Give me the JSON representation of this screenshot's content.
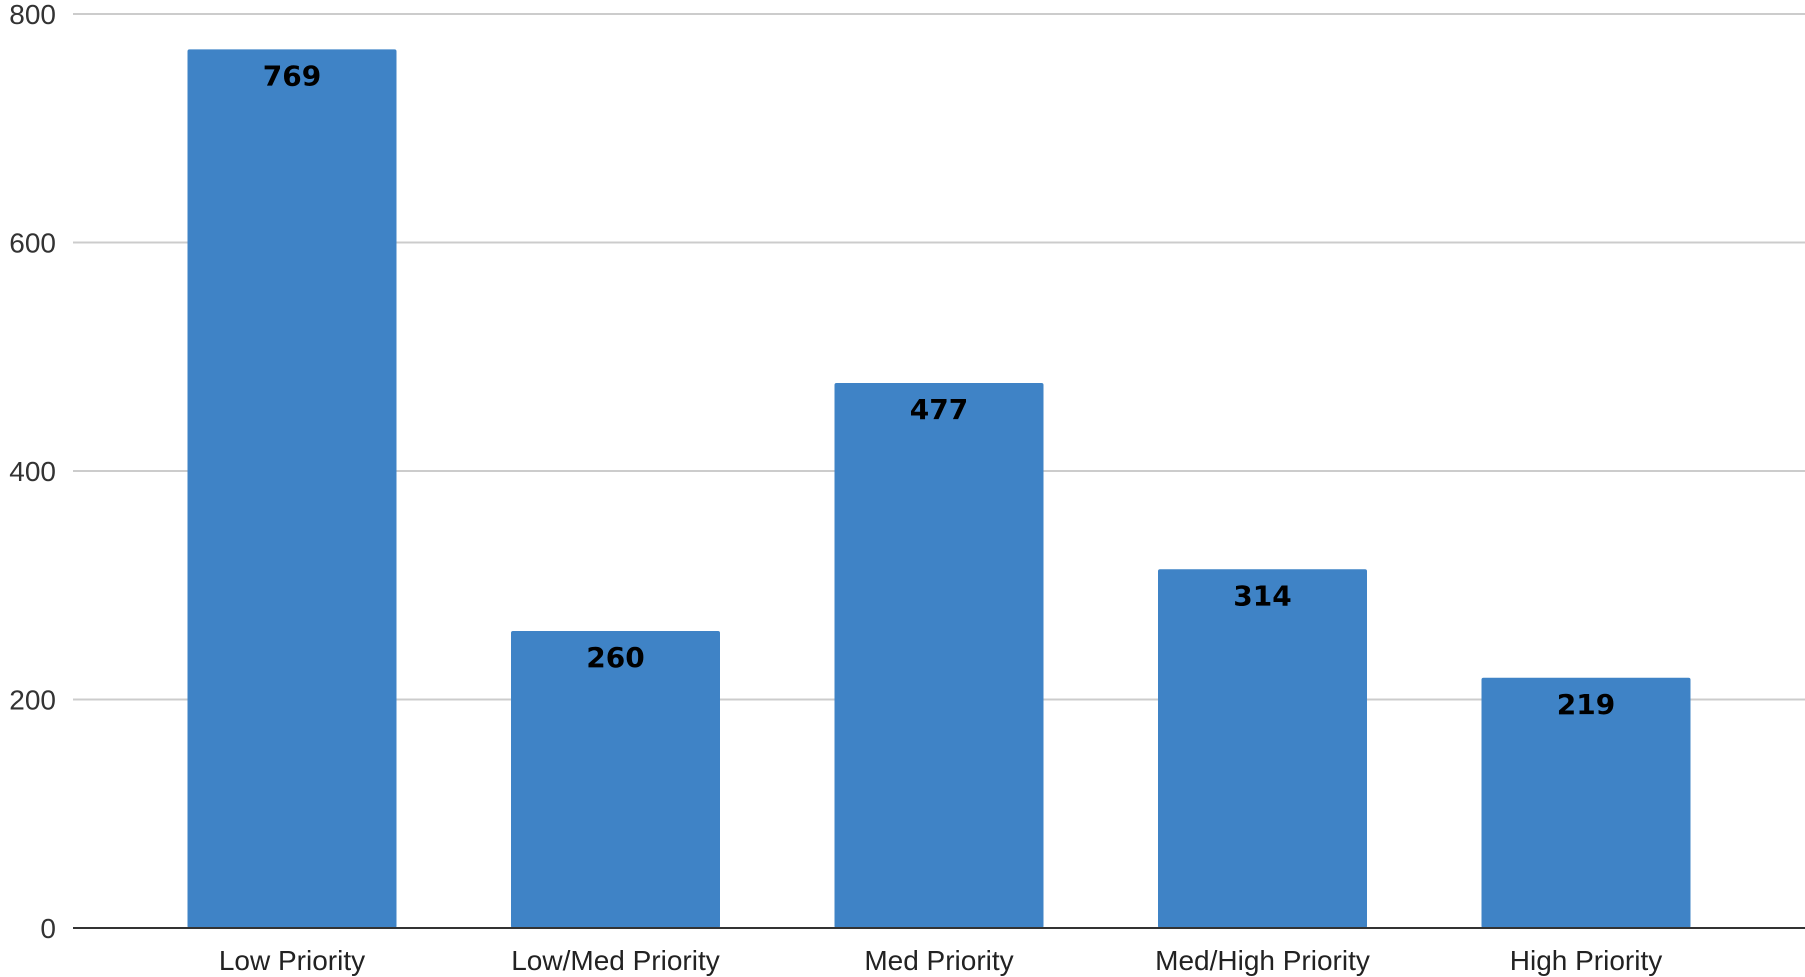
{
  "chart_data": {
    "type": "bar",
    "title": "",
    "xlabel": "",
    "ylabel": "",
    "categories": [
      "Low Priority",
      "Low/Med Priority",
      "Med Priority",
      "Med/High Priority",
      "High Priority"
    ],
    "values": [
      769,
      260,
      477,
      314,
      219
    ],
    "data_labels": [
      "769",
      "260",
      "477",
      "314",
      "219"
    ],
    "ylim": [
      0,
      800
    ],
    "y_ticks": [
      0,
      200,
      400,
      600,
      800
    ],
    "y_tick_labels": [
      "0",
      "200",
      "400",
      "600",
      "800"
    ],
    "grid": true,
    "legend": "none",
    "colors": {
      "bar": "#3f83c6",
      "grid": "#cccccc",
      "axis": "#333333"
    }
  }
}
